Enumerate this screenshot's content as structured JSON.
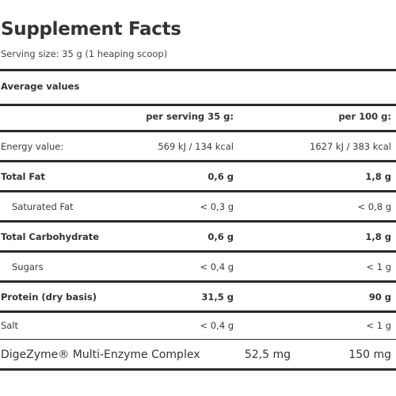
{
  "title": "Supplement Facts",
  "serving_size": "Serving size: 35 g (1 heaping scoop)",
  "average_values": "Average values",
  "columns": {
    "per_serving": "per serving 35 g:",
    "per_100g": "per 100 g:"
  },
  "rows": [
    {
      "label": "Energy value:",
      "per_serving": "569 kJ / 134 kcal",
      "per_100g": "1627 kJ / 383 kcal"
    },
    {
      "label": "Total Fat",
      "per_serving": "0,6 g",
      "per_100g": "1,8 g"
    },
    {
      "label": "Saturated Fat",
      "per_serving": "< 0,3 g",
      "per_100g": "< 0,8 g"
    },
    {
      "label": "Total Carbohydrate",
      "per_serving": "0,6 g",
      "per_100g": "1,8 g"
    },
    {
      "label": "Sugars",
      "per_serving": "< 0,4 g",
      "per_100g": "< 1 g"
    },
    {
      "label": "Protein (dry basis)",
      "per_serving": "31,5 g",
      "per_100g": "90 g"
    },
    {
      "label": "Salt",
      "per_serving": "< 0,4 g",
      "per_100g": "< 1 g"
    },
    {
      "label": "DigeZyme® Multi-Enzyme Complex",
      "per_serving": "52,5 mg",
      "per_100g": "150 mg"
    }
  ]
}
